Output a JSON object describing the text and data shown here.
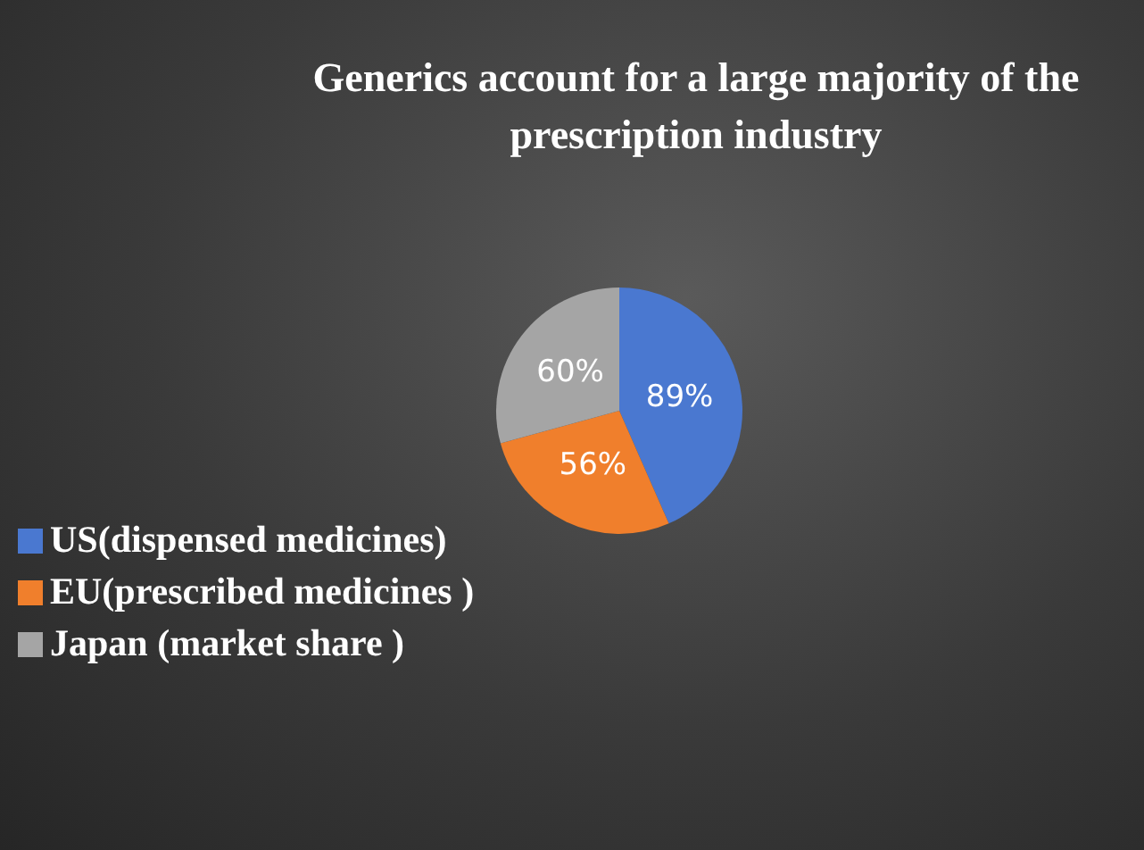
{
  "chart_data": {
    "type": "pie",
    "title": "Generics account for a large majority of the prescription industry",
    "categories": [
      "US(dispensed medicines)",
      "EU(prescribed medicines )",
      "Japan (market share )"
    ],
    "values": [
      89,
      56,
      60
    ],
    "colors": [
      "#4a78d0",
      "#f07f2c",
      "#a5a5a5"
    ],
    "value_labels": [
      "89%",
      "56%",
      "60%"
    ],
    "legend": "bottom left"
  }
}
